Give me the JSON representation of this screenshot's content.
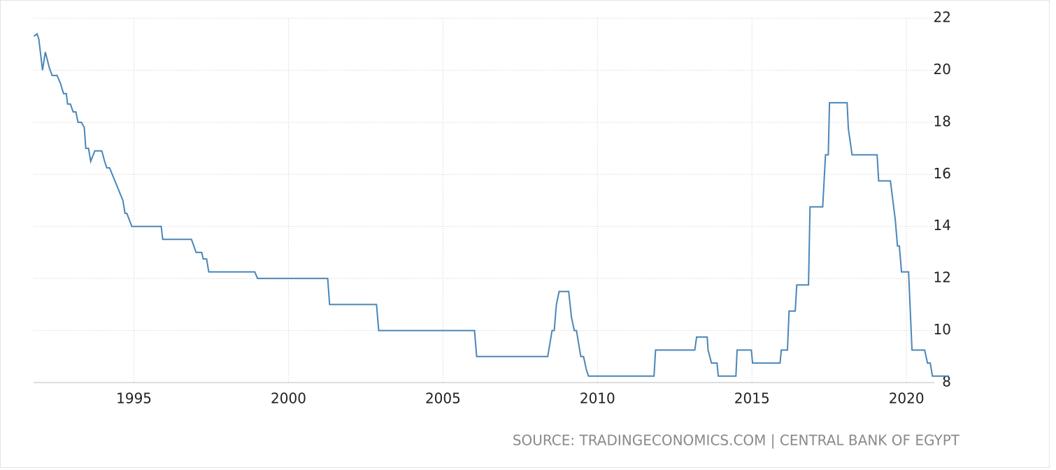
{
  "chart_data": {
    "type": "line",
    "source": "SOURCE: TRADINGECONOMICS.COM | CENTRAL BANK OF EGYPT",
    "x": [
      1991.76,
      1991.86,
      1991.92,
      1992.04,
      1992.13,
      1992.26,
      1992.35,
      1992.51,
      1992.62,
      1992.72,
      1992.81,
      1992.85,
      1992.94,
      1993.03,
      1993.12,
      1993.19,
      1993.3,
      1993.39,
      1993.44,
      1993.53,
      1993.6,
      1993.73,
      1993.96,
      1994.05,
      1994.12,
      1994.21,
      1994.64,
      1994.71,
      1994.77,
      1994.93,
      1995.88,
      1995.93,
      1996.86,
      1997.01,
      1997.19,
      1997.24,
      1997.35,
      1997.42,
      1998.91,
      1999.0,
      2001.27,
      2001.33,
      2002.85,
      2002.92,
      2006.02,
      2006.09,
      2008.39,
      2008.53,
      2008.6,
      2008.67,
      2008.76,
      2009.07,
      2009.16,
      2009.25,
      2009.32,
      2009.46,
      2009.55,
      2009.64,
      2009.71,
      2011.83,
      2011.88,
      2013.15,
      2013.21,
      2013.55,
      2013.58,
      2013.69,
      2013.87,
      2013.91,
      2014.48,
      2014.52,
      2014.98,
      2015.02,
      2015.91,
      2015.95,
      2016.15,
      2016.2,
      2016.4,
      2016.45,
      2016.83,
      2016.88,
      2017.29,
      2017.38,
      2017.47,
      2017.51,
      2018.08,
      2018.12,
      2018.24,
      2019.05,
      2019.1,
      2019.48,
      2019.64,
      2019.71,
      2019.77,
      2019.84,
      2020.07,
      2020.18,
      2020.59,
      2020.68,
      2020.77,
      2020.84,
      2021.38
    ],
    "values": [
      21.3,
      21.4,
      21.2,
      20.0,
      20.7,
      20.1,
      19.8,
      19.8,
      19.5,
      19.1,
      19.1,
      18.7,
      18.7,
      18.4,
      18.4,
      18.0,
      18.0,
      17.8,
      17.0,
      17.0,
      16.5,
      16.9,
      16.9,
      16.5,
      16.25,
      16.25,
      15.0,
      14.5,
      14.5,
      14.0,
      14.0,
      13.5,
      13.5,
      13.0,
      13.0,
      12.75,
      12.75,
      12.25,
      12.25,
      12.0,
      12.0,
      11.0,
      11.0,
      10.0,
      10.0,
      9.0,
      9.0,
      10.0,
      10.0,
      11.0,
      11.5,
      11.5,
      10.5,
      10.0,
      10.0,
      9.0,
      9.0,
      8.5,
      8.25,
      8.25,
      9.25,
      9.25,
      9.75,
      9.75,
      9.25,
      8.75,
      8.75,
      8.25,
      8.25,
      9.25,
      9.25,
      8.75,
      8.75,
      9.25,
      9.25,
      10.75,
      10.75,
      11.75,
      11.75,
      14.75,
      14.75,
      16.75,
      16.75,
      18.75,
      18.75,
      17.75,
      16.75,
      16.75,
      15.75,
      15.75,
      14.25,
      13.25,
      13.25,
      12.25,
      12.25,
      9.25,
      9.25,
      8.75,
      8.75,
      8.25,
      8.25
    ],
    "color": "#4a86b8",
    "xlim": [
      1991.75,
      2021.4
    ],
    "xticks": [
      1995,
      2000,
      2005,
      2010,
      2015,
      2020
    ],
    "ylim": [
      8,
      22
    ],
    "yticks": [
      8,
      10,
      12,
      14,
      16,
      18,
      20,
      22
    ],
    "grid": true
  }
}
